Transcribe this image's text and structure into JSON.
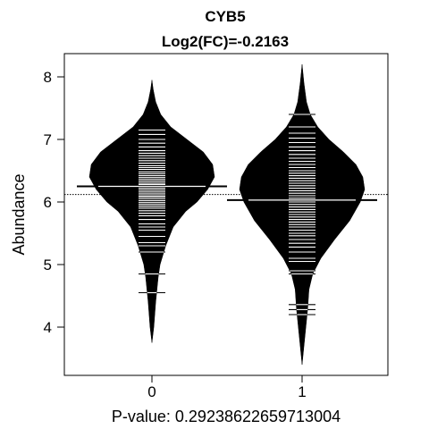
{
  "chart_data": {
    "type": "beanplot",
    "title": "CYB5",
    "subtitle": "Log2(FC)=-0.2163",
    "ylabel": "Abundance",
    "xlabel": "P-value: 0.29238622659713004",
    "ylim": [
      3.2,
      8.5
    ],
    "yticks": [
      "4",
      "5",
      "6",
      "7",
      "8"
    ],
    "categories": [
      "0",
      "1"
    ],
    "overall_mean": 6.12,
    "beans": [
      {
        "category": "0",
        "mean": 6.25,
        "min": 3.75,
        "max": 7.95,
        "density": [
          [
            3.75,
            0.0
          ],
          [
            4.0,
            0.03
          ],
          [
            4.4,
            0.06
          ],
          [
            4.8,
            0.1
          ],
          [
            5.0,
            0.13
          ],
          [
            5.3,
            0.22
          ],
          [
            5.6,
            0.34
          ],
          [
            5.85,
            0.54
          ],
          [
            6.0,
            0.72
          ],
          [
            6.2,
            0.89
          ],
          [
            6.4,
            1.0
          ],
          [
            6.6,
            0.97
          ],
          [
            6.8,
            0.82
          ],
          [
            7.0,
            0.56
          ],
          [
            7.2,
            0.3
          ],
          [
            7.4,
            0.14
          ],
          [
            7.6,
            0.06
          ],
          [
            7.8,
            0.02
          ],
          [
            7.95,
            0.0
          ]
        ],
        "points": [
          4.55,
          4.85,
          5.2,
          5.3,
          5.35,
          5.45,
          5.55,
          5.6,
          5.65,
          5.72,
          5.78,
          5.82,
          5.86,
          5.9,
          5.93,
          5.96,
          5.99,
          6.02,
          6.05,
          6.08,
          6.1,
          6.13,
          6.16,
          6.19,
          6.22,
          6.25,
          6.28,
          6.3,
          6.33,
          6.36,
          6.39,
          6.42,
          6.45,
          6.48,
          6.52,
          6.55,
          6.58,
          6.62,
          6.66,
          6.7,
          6.74,
          6.78,
          6.82,
          6.88,
          6.94,
          7.0,
          7.08,
          7.15
        ]
      },
      {
        "category": "1",
        "mean": 6.03,
        "min": 3.4,
        "max": 8.2,
        "density": [
          [
            3.4,
            0.0
          ],
          [
            3.7,
            0.03
          ],
          [
            4.0,
            0.06
          ],
          [
            4.3,
            0.09
          ],
          [
            4.6,
            0.11
          ],
          [
            4.85,
            0.17
          ],
          [
            5.1,
            0.3
          ],
          [
            5.4,
            0.52
          ],
          [
            5.7,
            0.76
          ],
          [
            6.0,
            0.93
          ],
          [
            6.2,
            1.0
          ],
          [
            6.4,
            0.97
          ],
          [
            6.6,
            0.86
          ],
          [
            6.8,
            0.66
          ],
          [
            7.0,
            0.43
          ],
          [
            7.2,
            0.25
          ],
          [
            7.4,
            0.13
          ],
          [
            7.6,
            0.07
          ],
          [
            7.9,
            0.03
          ],
          [
            8.2,
            0.0
          ]
        ],
        "points": [
          4.2,
          4.28,
          4.36,
          4.85,
          4.9,
          5.05,
          5.1,
          5.2,
          5.28,
          5.34,
          5.4,
          5.46,
          5.5,
          5.55,
          5.6,
          5.64,
          5.68,
          5.72,
          5.76,
          5.8,
          5.84,
          5.88,
          5.92,
          5.96,
          6.0,
          6.03,
          6.06,
          6.1,
          6.14,
          6.18,
          6.22,
          6.26,
          6.3,
          6.34,
          6.38,
          6.42,
          6.46,
          6.5,
          6.55,
          6.6,
          6.65,
          6.7,
          6.76,
          6.82,
          6.88,
          6.95,
          7.02,
          7.1,
          7.2,
          7.4
        ]
      }
    ]
  }
}
